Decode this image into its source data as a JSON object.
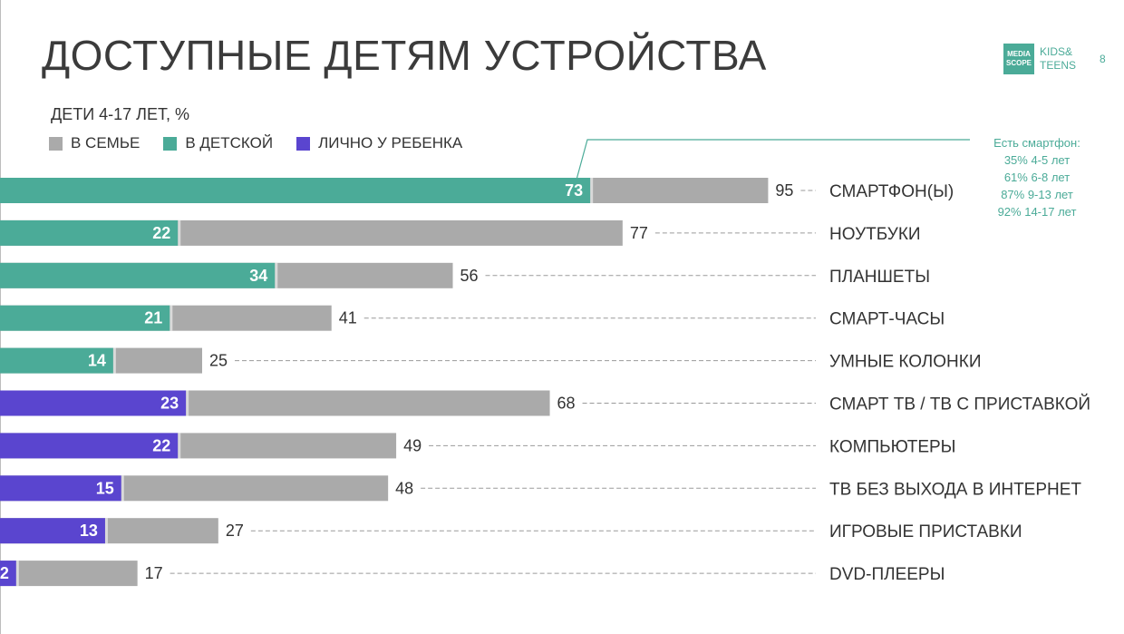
{
  "header": {
    "title": "ДОСТУПНЫЕ ДЕТЯМ УСТРОЙСТВА",
    "subtitle": "ДЕТИ 4-17 ЛЕТ, %",
    "logo_line1": "MEDIA",
    "logo_line2": "SCOPE",
    "logo_kids": "KIDS&",
    "logo_teens": "TEENS",
    "page_number": "8"
  },
  "legend": {
    "family": "В СЕМЬЕ",
    "nursery": "В ДЕТСКОЙ",
    "personal": "ЛИЧНО У РЕБЕНКА"
  },
  "note": {
    "title": "Есть смартфон:",
    "lines": [
      "35% 4-5 лет",
      "61% 6-8 лет",
      "87% 9-13 лет",
      "92% 14-17 лет"
    ]
  },
  "colors": {
    "family": "#aaaaaa",
    "nursery": "#4bab98",
    "personal": "#5a45cf",
    "text": "#333333"
  },
  "chart_data": {
    "type": "bar",
    "orientation": "horizontal",
    "categories": [
      "СМАРТФОН(Ы)",
      "НОУТБУКИ",
      "ПЛАНШЕТЫ",
      "СМАРТ-ЧАСЫ",
      "УМНЫЕ КОЛОНКИ",
      "СМАРТ ТВ / ТВ С ПРИСТАВКОЙ",
      "КОМПЬЮТЕРЫ",
      "ТВ БЕЗ ВЫХОДА В ИНТЕРНЕТ",
      "ИГРОВЫЕ ПРИСТАВКИ",
      "DVD-ПЛЕЕРЫ"
    ],
    "family_values": [
      95,
      77,
      56,
      41,
      25,
      68,
      49,
      48,
      27,
      17
    ],
    "inner_values": [
      73,
      22,
      34,
      21,
      14,
      23,
      22,
      15,
      13,
      2
    ],
    "inner_series": [
      "nursery",
      "nursery",
      "nursery",
      "nursery",
      "nursery",
      "personal",
      "personal",
      "personal",
      "personal",
      "personal"
    ],
    "xlim": [
      0,
      100
    ],
    "grid": false
  }
}
